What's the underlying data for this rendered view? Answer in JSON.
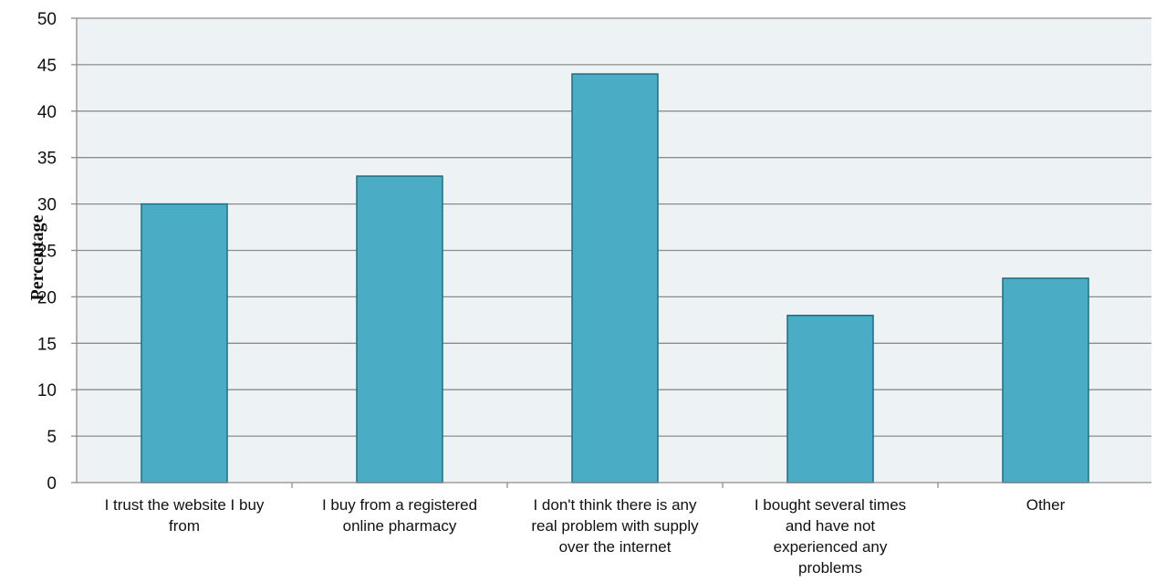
{
  "chart_data": {
    "type": "bar",
    "title": "",
    "xlabel": "",
    "ylabel": "Percentage",
    "ylim": [
      0,
      50
    ],
    "yticks": [
      0,
      5,
      10,
      15,
      20,
      25,
      30,
      35,
      40,
      45,
      50
    ],
    "grid": true,
    "legend": "none",
    "categories": [
      [
        "I trust the website I buy",
        "from"
      ],
      [
        "I buy from a registered",
        "online pharmacy"
      ],
      [
        "I don't think there is any",
        "real problem with supply",
        "over the internet"
      ],
      [
        "I bought several times",
        "and have not",
        "experienced any",
        "problems"
      ],
      [
        "Other"
      ]
    ],
    "values": [
      30,
      33,
      44,
      18,
      22
    ],
    "colors": {
      "bar_fill": "#4bacc6",
      "bar_stroke": "#1f6e80",
      "plot_background": "#edf2f5",
      "gridline": "#8c8c8c"
    }
  }
}
